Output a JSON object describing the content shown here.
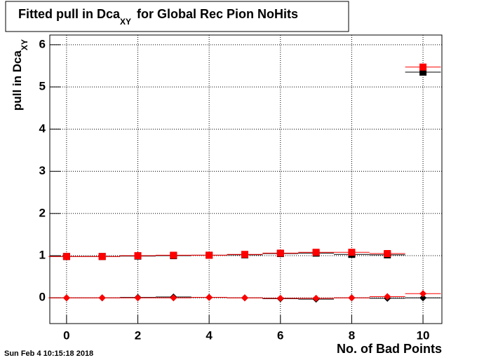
{
  "chart_data": {
    "type": "scatter",
    "title": {
      "text": "Fitted pull in Dca",
      "subscript": "XY",
      "rest": "for Global Rec Pion NoHits"
    },
    "y_label": {
      "text": "pull in Dca",
      "subscript": "XY"
    },
    "x_label": "No. of Bad Points",
    "timestamp": "Sun Feb  4 10:15:18 2018",
    "x": [
      0,
      1,
      2,
      3,
      4,
      5,
      6,
      7,
      8,
      9,
      10
    ],
    "xerr": 0.5,
    "series": [
      {
        "color": "#000000",
        "marker": "square",
        "values": [
          0.98,
          0.98,
          0.99,
          1.0,
          1.01,
          1.02,
          1.05,
          1.06,
          1.03,
          1.02,
          5.35
        ]
      },
      {
        "color": "#ff0000",
        "marker": "square",
        "values": [
          0.98,
          0.98,
          1.0,
          1.01,
          1.01,
          1.03,
          1.06,
          1.08,
          1.08,
          1.05,
          5.47
        ]
      },
      {
        "color": "#000000",
        "marker": "diamond",
        "values": [
          0,
          0,
          0.01,
          0.02,
          0.01,
          0,
          -0.02,
          -0.03,
          0,
          -0.01,
          0
        ]
      },
      {
        "color": "#ff0000",
        "marker": "diamond",
        "values": [
          0,
          0,
          0,
          0,
          0.01,
          0,
          -0.01,
          -0.01,
          0,
          0.03,
          0.1
        ]
      }
    ],
    "xlim": [
      -0.47,
      10.53
    ],
    "ylim": [
      -0.61,
      6.23
    ],
    "xticks": [
      0,
      2,
      4,
      6,
      8,
      10
    ],
    "yticks": [
      0,
      1,
      2,
      3,
      4,
      5,
      6
    ],
    "grid": true
  }
}
